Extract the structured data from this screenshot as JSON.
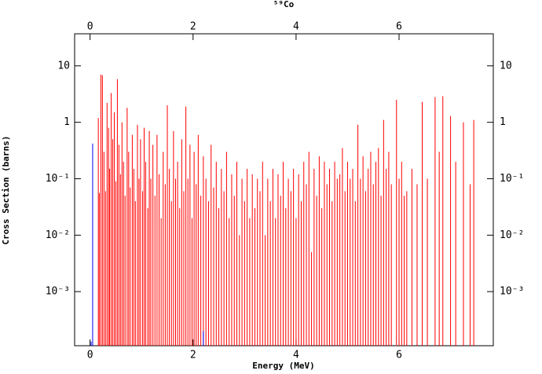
{
  "chart_data": {
    "type": "spike",
    "title": "⁵⁹Co",
    "xlabel": "Energy (MeV)",
    "ylabel": "Cross Section (barns)",
    "xlim": [
      -0.3,
      7.83
    ],
    "xticks": [
      0,
      2,
      4,
      6
    ],
    "ylim": [
      0.00011,
      37
    ],
    "log_y": true,
    "yticks": [
      {
        "value": 10,
        "label": "10"
      },
      {
        "value": 1,
        "label": "1"
      },
      {
        "value": 0.1,
        "label": "10⁻¹"
      },
      {
        "value": 0.01,
        "label": "10⁻²"
      },
      {
        "value": 0.001,
        "label": "10⁻³"
      }
    ],
    "series": [
      {
        "color": "#ff0000",
        "x": [
          0.16,
          0.18,
          0.21,
          0.24,
          0.27,
          0.3,
          0.33,
          0.36,
          0.38,
          0.41,
          0.44,
          0.47,
          0.5,
          0.53,
          0.56,
          0.59,
          0.62,
          0.65,
          0.68,
          0.72,
          0.75,
          0.78,
          0.82,
          0.85,
          0.88,
          0.92,
          0.95,
          0.98,
          1.02,
          1.05,
          1.08,
          1.12,
          1.15,
          1.18,
          1.22,
          1.26,
          1.3,
          1.34,
          1.38,
          1.42,
          1.46,
          1.5,
          1.54,
          1.58,
          1.62,
          1.66,
          1.7,
          1.74,
          1.78,
          1.82,
          1.86,
          1.9,
          1.94,
          1.98,
          2.02,
          2.06,
          2.1,
          2.15,
          2.2,
          2.25,
          2.3,
          2.35,
          2.4,
          2.45,
          2.5,
          2.55,
          2.6,
          2.65,
          2.7,
          2.75,
          2.8,
          2.85,
          2.9,
          2.95,
          3.0,
          3.05,
          3.1,
          3.15,
          3.2,
          3.25,
          3.3,
          3.35,
          3.4,
          3.45,
          3.5,
          3.55,
          3.6,
          3.65,
          3.7,
          3.75,
          3.8,
          3.85,
          3.9,
          3.95,
          4.0,
          4.05,
          4.1,
          4.15,
          4.2,
          4.25,
          4.3,
          4.35,
          4.4,
          4.45,
          4.5,
          4.55,
          4.6,
          4.65,
          4.7,
          4.75,
          4.8,
          4.85,
          4.9,
          4.95,
          5.0,
          5.05,
          5.1,
          5.15,
          5.2,
          5.25,
          5.3,
          5.35,
          5.4,
          5.45,
          5.5,
          5.55,
          5.6,
          5.65,
          5.7,
          5.75,
          5.8,
          5.85,
          5.95,
          6.0,
          6.05,
          6.1,
          6.15,
          6.25,
          6.35,
          6.45,
          6.55,
          6.7,
          6.78,
          6.85,
          7.0,
          7.1,
          7.25,
          7.38,
          7.45
        ],
        "values": [
          1.2,
          0.056,
          7.0,
          6.8,
          0.3,
          0.06,
          2.2,
          0.8,
          0.15,
          3.3,
          0.5,
          1.5,
          0.09,
          5.8,
          0.4,
          0.12,
          1.0,
          0.2,
          0.05,
          1.8,
          0.3,
          0.07,
          0.6,
          0.15,
          0.04,
          0.9,
          0.1,
          0.5,
          0.06,
          0.8,
          0.2,
          0.03,
          0.7,
          0.1,
          0.4,
          0.05,
          0.6,
          0.12,
          0.02,
          0.3,
          0.08,
          2.0,
          0.15,
          0.04,
          0.7,
          0.1,
          0.2,
          0.03,
          0.5,
          0.06,
          1.9,
          0.1,
          0.4,
          0.02,
          0.3,
          0.08,
          0.6,
          0.05,
          0.25,
          0.1,
          0.04,
          0.4,
          0.07,
          0.2,
          0.03,
          0.15,
          0.06,
          0.3,
          0.02,
          0.12,
          0.05,
          0.2,
          0.01,
          0.1,
          0.04,
          0.15,
          0.02,
          0.12,
          0.03,
          0.1,
          0.06,
          0.2,
          0.01,
          0.1,
          0.04,
          0.15,
          0.02,
          0.12,
          0.05,
          0.2,
          0.03,
          0.1,
          0.06,
          0.15,
          0.02,
          0.12,
          0.04,
          0.2,
          0.08,
          0.3,
          0.005,
          0.15,
          0.05,
          0.25,
          0.03,
          0.2,
          0.08,
          0.15,
          0.04,
          0.2,
          0.1,
          0.12,
          0.35,
          0.06,
          0.2,
          0.1,
          0.15,
          0.04,
          0.9,
          0.1,
          0.25,
          0.06,
          0.15,
          0.3,
          0.08,
          0.2,
          0.35,
          0.05,
          1.1,
          0.15,
          0.3,
          0.08,
          2.5,
          0.1,
          0.2,
          0.05,
          0.06,
          0.15,
          0.08,
          2.3,
          0.1,
          2.8,
          0.3,
          2.9,
          1.3,
          0.2,
          1.0,
          0.08,
          1.1
        ]
      },
      {
        "color": "#0000ff",
        "x": [
          0.02,
          0.05,
          2.2
        ],
        "values": [
          0.00013,
          0.42,
          0.0002
        ]
      }
    ]
  }
}
